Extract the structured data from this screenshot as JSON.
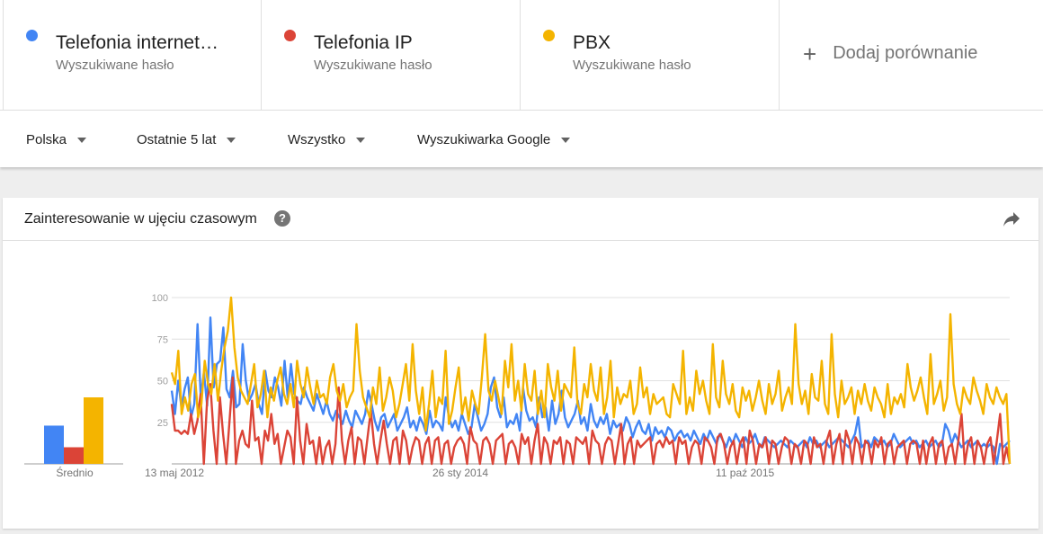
{
  "terms": [
    {
      "name": "Telefonia internetowa",
      "type": "Wyszukiwane hasło",
      "color": "#4285f4"
    },
    {
      "name": "Telefonia IP",
      "type": "Wyszukiwane hasło",
      "color": "#db4437"
    },
    {
      "name": "PBX",
      "type": "Wyszukiwane hasło",
      "color": "#f4b400"
    }
  ],
  "add_comparison": {
    "icon": "plus-icon",
    "label": "Dodaj porównanie"
  },
  "filters": {
    "region": "Polska",
    "time": "Ostatnie 5 lat",
    "category": "Wszystko",
    "source": "Wyszukiwarka Google"
  },
  "card": {
    "title": "Zainteresowanie w ujęciu czasowym",
    "help_icon": "question-circle-icon",
    "help_glyph": "?",
    "share_icon": "share-icon"
  },
  "chart_data": {
    "type": "line",
    "title": "Zainteresowanie w ujęciu czasowym",
    "ylim": [
      0,
      100
    ],
    "yticks": [
      "25",
      "50",
      "75",
      "100"
    ],
    "x_labels": [
      "13 maj 2012",
      "26 sty 2014",
      "11 paź 2015"
    ],
    "averages": {
      "label": "Średnio",
      "values": [
        {
          "series": "Telefonia internetowa",
          "value": 23
        },
        {
          "series": "Telefonia IP",
          "value": 10
        },
        {
          "series": "PBX",
          "value": 40
        }
      ]
    },
    "series": [
      {
        "name": "Telefonia internetowa",
        "color": "#4285f4",
        "values": [
          44,
          30,
          50,
          34,
          45,
          52,
          28,
          36,
          84,
          40,
          55,
          35,
          88,
          46,
          60,
          62,
          82,
          45,
          40,
          56,
          34,
          36,
          72,
          50,
          38,
          42,
          48,
          36,
          30,
          56,
          44,
          40,
          52,
          46,
          35,
          62,
          40,
          60,
          42,
          38,
          36,
          46,
          40,
          36,
          32,
          42,
          36,
          30,
          38,
          30,
          26,
          32,
          28,
          24,
          32,
          26,
          22,
          32,
          28,
          24,
          30,
          44,
          36,
          26,
          20,
          28,
          30,
          22,
          26,
          30,
          20,
          24,
          28,
          34,
          22,
          26,
          20,
          28,
          24,
          18,
          32,
          22,
          26,
          24,
          20,
          40,
          28,
          22,
          26,
          20,
          30,
          24,
          18,
          22,
          36,
          28,
          20,
          24,
          30,
          46,
          52,
          34,
          28,
          40,
          22,
          26,
          24,
          30,
          20,
          46,
          32,
          26,
          28,
          22,
          40,
          28,
          34,
          20,
          38,
          24,
          30,
          44,
          28,
          22,
          26,
          30,
          38,
          24,
          28,
          20,
          36,
          26,
          22,
          28,
          24,
          30,
          18,
          26,
          22,
          24,
          20,
          28,
          24,
          16,
          22,
          26,
          20,
          18,
          24,
          14,
          22,
          18,
          20,
          16,
          22,
          20,
          14,
          18,
          20,
          16,
          18,
          14,
          20,
          16,
          12,
          18,
          14,
          20,
          16,
          12,
          18,
          14,
          10,
          16,
          12,
          18,
          14,
          10,
          16,
          12,
          14,
          18,
          12,
          10,
          16,
          14,
          12,
          10,
          12,
          14,
          12,
          10,
          14,
          12,
          10,
          12,
          14,
          10,
          16,
          12,
          14,
          10,
          12,
          14,
          10,
          12,
          14,
          16,
          14,
          12,
          10,
          14,
          18,
          28,
          10,
          12,
          14,
          10,
          16,
          14,
          12,
          14,
          10,
          12,
          18,
          14,
          10,
          12,
          14,
          16,
          12,
          14,
          10,
          12,
          14,
          10,
          12,
          14,
          10,
          12,
          24,
          20,
          12,
          18,
          14,
          10,
          12,
          14,
          10,
          12,
          14,
          10,
          12,
          10,
          12,
          10,
          0,
          12,
          10,
          12,
          14
        ]
      },
      {
        "name": "Telefonia IP",
        "color": "#db4437",
        "values": [
          36,
          20,
          20,
          18,
          20,
          18,
          30,
          18,
          26,
          42,
          0,
          38,
          48,
          20,
          0,
          40,
          18,
          0,
          26,
          52,
          0,
          14,
          20,
          12,
          10,
          38,
          14,
          16,
          0,
          20,
          14,
          30,
          12,
          18,
          0,
          10,
          20,
          16,
          0,
          40,
          14,
          0,
          24,
          12,
          14,
          0,
          16,
          0,
          10,
          14,
          0,
          12,
          46,
          14,
          0,
          14,
          22,
          0,
          16,
          14,
          0,
          16,
          32,
          12,
          0,
          14,
          26,
          12,
          0,
          14,
          16,
          0,
          20,
          14,
          0,
          10,
          16,
          14,
          0,
          12,
          16,
          0,
          14,
          16,
          0,
          12,
          14,
          0,
          10,
          14,
          16,
          12,
          0,
          22,
          14,
          12,
          0,
          14,
          16,
          12,
          0,
          14,
          16,
          18,
          0,
          12,
          14,
          10,
          0,
          18,
          12,
          16,
          0,
          14,
          24,
          0,
          16,
          12,
          0,
          14,
          12,
          16,
          0,
          14,
          12,
          0,
          16,
          14,
          12,
          16,
          0,
          20,
          14,
          12,
          0,
          12,
          16,
          14,
          0,
          12,
          24,
          0,
          12,
          16,
          0,
          14,
          10,
          12,
          14,
          16,
          0,
          12,
          14,
          10,
          16,
          12,
          14,
          0,
          16,
          12,
          14,
          0,
          10,
          14,
          12,
          0,
          16,
          14,
          10,
          0,
          16,
          18,
          12,
          0,
          10,
          14,
          0,
          12,
          16,
          0,
          20,
          14,
          0,
          12,
          10,
          16,
          0,
          14,
          12,
          0,
          10,
          16,
          14,
          0,
          12,
          10,
          0,
          14,
          12,
          0,
          16,
          10,
          12,
          0,
          14,
          20,
          0,
          12,
          18,
          0,
          20,
          14,
          0,
          16,
          12,
          0,
          14,
          12,
          0,
          14,
          10,
          16,
          0,
          12,
          14,
          0,
          10,
          12,
          14,
          0,
          12,
          14,
          12,
          0,
          14,
          0,
          12,
          16,
          0,
          12,
          14,
          0,
          10,
          12,
          0,
          14,
          30,
          0,
          12,
          16,
          0,
          14,
          10,
          0,
          12,
          16,
          0,
          14,
          30,
          0,
          10,
          0
        ]
      },
      {
        "name": "PBX",
        "color": "#f4b400",
        "values": [
          55,
          48,
          68,
          30,
          40,
          32,
          48,
          54,
          28,
          36,
          62,
          48,
          42,
          60,
          38,
          56,
          70,
          80,
          100,
          70,
          52,
          44,
          40,
          36,
          48,
          60,
          34,
          42,
          56,
          28,
          46,
          38,
          50,
          58,
          42,
          36,
          48,
          34,
          62,
          48,
          40,
          58,
          46,
          36,
          50,
          40,
          42,
          36,
          52,
          60,
          44,
          38,
          48,
          34,
          40,
          44,
          84,
          56,
          40,
          34,
          28,
          46,
          36,
          58,
          32,
          40,
          52,
          44,
          28,
          36,
          48,
          60,
          38,
          72,
          44,
          30,
          46,
          20,
          36,
          56,
          28,
          40,
          36,
          68,
          24,
          32,
          46,
          58,
          30,
          40,
          26,
          44,
          36,
          30,
          52,
          78,
          44,
          38,
          50,
          40,
          30,
          62,
          46,
          72,
          38,
          50,
          32,
          60,
          42,
          38,
          56,
          30,
          44,
          28,
          60,
          46,
          38,
          56,
          32,
          48,
          44,
          40,
          70,
          36,
          30,
          48,
          40,
          60,
          44,
          38,
          58,
          30,
          40,
          62,
          28,
          46,
          36,
          42,
          40,
          50,
          30,
          36,
          58,
          40,
          46,
          30,
          42,
          36,
          38,
          40,
          30,
          28,
          48,
          42,
          36,
          68,
          30,
          40,
          32,
          56,
          42,
          50,
          38,
          30,
          72,
          40,
          34,
          62,
          42,
          36,
          48,
          32,
          28,
          46,
          38,
          44,
          32,
          40,
          50,
          38,
          30,
          48,
          36,
          42,
          56,
          32,
          40,
          46,
          36,
          84,
          48,
          36,
          44,
          30,
          54,
          40,
          38,
          62,
          36,
          30,
          78,
          42,
          28,
          50,
          36,
          40,
          46,
          30,
          44,
          36,
          48,
          38,
          32,
          46,
          40,
          36,
          28,
          48,
          30,
          40,
          36,
          42,
          34,
          60,
          46,
          38,
          44,
          52,
          40,
          30,
          66,
          36,
          42,
          50,
          32,
          40,
          90,
          48,
          36,
          30,
          46,
          40,
          36,
          52,
          44,
          38,
          30,
          48,
          40,
          36,
          46,
          40,
          36,
          42,
          0
        ]
      }
    ]
  }
}
